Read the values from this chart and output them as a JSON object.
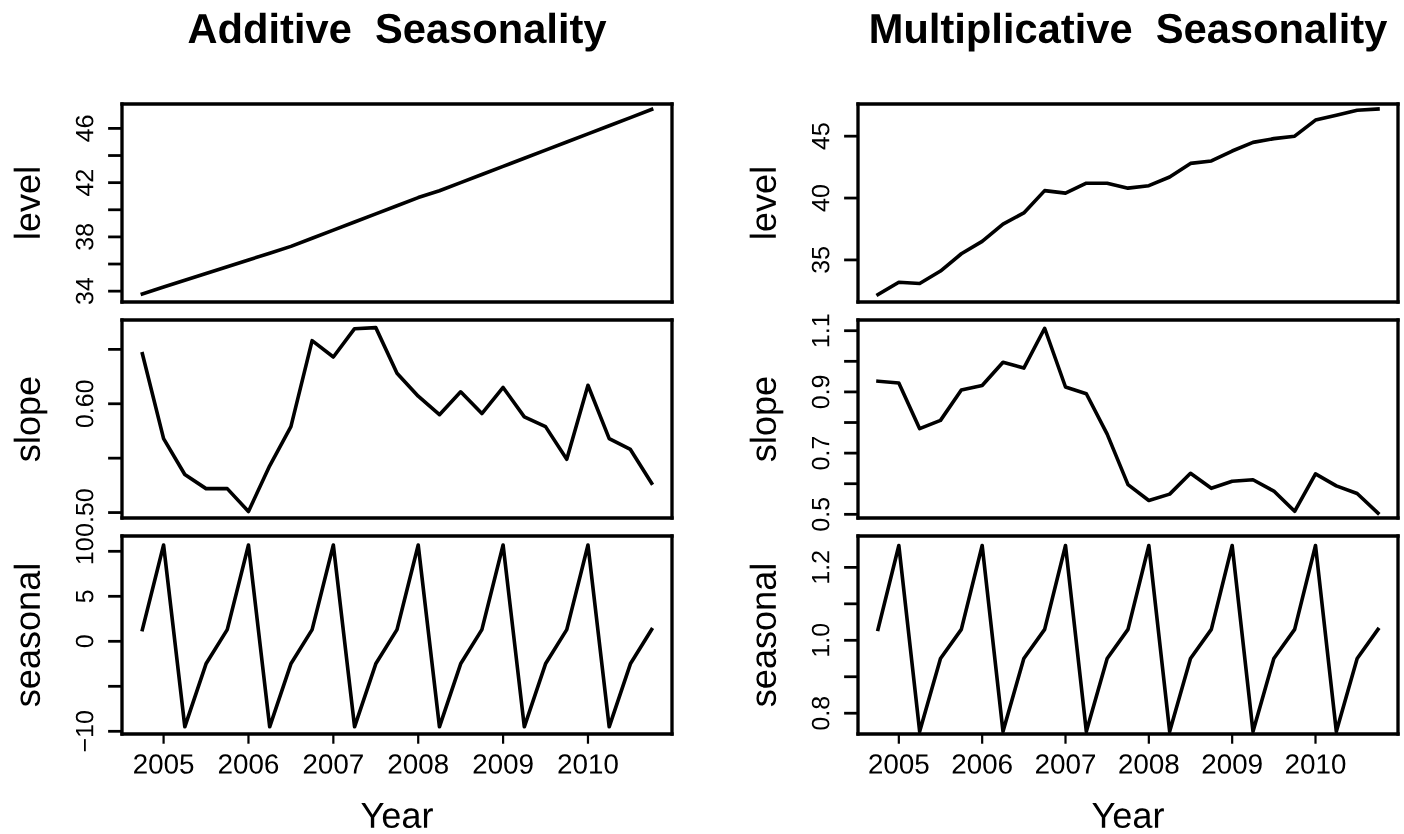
{
  "chart_data": [
    {
      "type": "line",
      "title": "Additive  Seasonality",
      "ylabel": "level",
      "x": [
        2004.75,
        2005,
        2005.25,
        2005.5,
        2005.75,
        2006,
        2006.25,
        2006.5,
        2006.75,
        2007,
        2007.25,
        2007.5,
        2007.75,
        2008,
        2008.25,
        2008.5,
        2008.75,
        2009,
        2009.25,
        2009.5,
        2009.75,
        2010,
        2010.25,
        2010.5,
        2010.75
      ],
      "series": [
        {
          "color": "#000000",
          "values": [
            33.8,
            34.3,
            34.8,
            35.3,
            35.8,
            36.3,
            36.8,
            37.3,
            37.9,
            38.5,
            39.1,
            39.7,
            40.3,
            40.9,
            41.4,
            42.0,
            42.6,
            43.2,
            43.8,
            44.4,
            45.0,
            45.6,
            46.2,
            46.8,
            47.4
          ]
        }
      ],
      "xlim": [
        2004.51,
        2010.99
      ],
      "xticks": [
        2005,
        2006,
        2007,
        2008,
        2009,
        2010
      ],
      "ylim": [
        33.2,
        47.8
      ],
      "yticks": [
        34,
        {
          "value": 36,
          "label": null
        },
        38,
        {
          "value": 40,
          "label": null
        },
        42,
        {
          "value": 44,
          "label": null
        },
        46
      ],
      "tick_labels": "y",
      "grid": false,
      "legend": false
    },
    {
      "type": "line",
      "ylabel": "slope",
      "x": [
        2004.75,
        2005,
        2005.25,
        2005.5,
        2005.75,
        2006,
        2006.25,
        2006.5,
        2006.75,
        2007,
        2007.25,
        2007.5,
        2007.75,
        2008,
        2008.25,
        2008.5,
        2008.75,
        2009,
        2009.25,
        2009.5,
        2009.75,
        2010,
        2010.25,
        2010.5,
        2010.75
      ],
      "series": [
        {
          "color": "#000000",
          "values": [
            0.646,
            0.568,
            0.535,
            0.522,
            0.522,
            0.501,
            0.543,
            0.579,
            0.658,
            0.643,
            0.669,
            0.67,
            0.628,
            0.607,
            0.59,
            0.611,
            0.591,
            0.615,
            0.588,
            0.579,
            0.549,
            0.617,
            0.568,
            0.558,
            0.527
          ]
        }
      ],
      "xlim": [
        2004.51,
        2010.99
      ],
      "xticks": [
        2005,
        2006,
        2007,
        2008,
        2009,
        2010
      ],
      "ylim": [
        0.495,
        0.677
      ],
      "yticks": [
        {
          "value": 0.5,
          "label": "0.50"
        },
        {
          "value": 0.55,
          "label": null
        },
        {
          "value": 0.6,
          "label": "0.60"
        },
        {
          "value": 0.65,
          "label": null
        }
      ],
      "tick_labels": "y",
      "grid": false,
      "legend": false
    },
    {
      "type": "line",
      "ylabel": "seasonal",
      "xlabel": "Year",
      "x": [
        2004.75,
        2005,
        2005.25,
        2005.5,
        2005.75,
        2006,
        2006.25,
        2006.5,
        2006.75,
        2007,
        2007.25,
        2007.5,
        2007.75,
        2008,
        2008.25,
        2008.5,
        2008.75,
        2009,
        2009.25,
        2009.5,
        2009.75,
        2010,
        2010.25,
        2010.5,
        2010.75
      ],
      "series": [
        {
          "color": "#000000",
          "values": [
            1.3,
            10.7,
            -9.5,
            -2.5,
            1.3,
            10.7,
            -9.5,
            -2.5,
            1.3,
            10.7,
            -9.5,
            -2.5,
            1.3,
            10.7,
            -9.5,
            -2.5,
            1.3,
            10.7,
            -9.5,
            -2.5,
            1.3,
            10.7,
            -9.5,
            -2.5,
            1.3
          ]
        }
      ],
      "xlim": [
        2004.51,
        2010.99
      ],
      "xticks": [
        2005,
        2006,
        2007,
        2008,
        2009,
        2010
      ],
      "ylim": [
        -10.3,
        11.7
      ],
      "yticks": [
        {
          "value": -10,
          "label": "−10"
        },
        {
          "value": -5,
          "label": null
        },
        0,
        5,
        10
      ],
      "grid": false,
      "legend": false
    },
    {
      "type": "line",
      "title": "Multiplicative  Seasonality",
      "ylabel": "level",
      "x": [
        2004.75,
        2005,
        2005.25,
        2005.5,
        2005.75,
        2006,
        2006.25,
        2006.5,
        2006.75,
        2007,
        2007.25,
        2007.5,
        2007.75,
        2008,
        2008.25,
        2008.5,
        2008.75,
        2009,
        2009.25,
        2009.5,
        2009.75,
        2010,
        2010.25,
        2010.5,
        2010.75
      ],
      "series": [
        {
          "color": "#000000",
          "values": [
            32.2,
            33.2,
            33.1,
            34.1,
            35.5,
            36.5,
            37.9,
            38.8,
            40.6,
            40.4,
            41.2,
            41.2,
            40.8,
            41.0,
            41.7,
            42.8,
            43.0,
            43.8,
            44.5,
            44.8,
            45.0,
            46.3,
            46.7,
            47.1,
            47.2
          ]
        }
      ],
      "xlim": [
        2004.51,
        2010.99
      ],
      "xticks": [
        2005,
        2006,
        2007,
        2008,
        2009,
        2010
      ],
      "ylim": [
        31.6,
        47.6
      ],
      "yticks": [
        35,
        40,
        45
      ],
      "tick_labels": "y",
      "grid": false,
      "legend": false
    },
    {
      "type": "line",
      "ylabel": "slope",
      "x": [
        2004.75,
        2005,
        2005.25,
        2005.5,
        2005.75,
        2006,
        2006.25,
        2006.5,
        2006.75,
        2007,
        2007.25,
        2007.5,
        2007.75,
        2008,
        2008.25,
        2008.5,
        2008.75,
        2009,
        2009.25,
        2009.5,
        2009.75,
        2010,
        2010.25,
        2010.5,
        2010.75
      ],
      "series": [
        {
          "color": "#000000",
          "values": [
            0.935,
            0.929,
            0.78,
            0.807,
            0.906,
            0.921,
            0.997,
            0.978,
            1.108,
            0.916,
            0.894,
            0.762,
            0.597,
            0.545,
            0.566,
            0.634,
            0.585,
            0.608,
            0.613,
            0.576,
            0.51,
            0.632,
            0.593,
            0.568,
            0.504
          ]
        }
      ],
      "xlim": [
        2004.51,
        2010.99
      ],
      "xticks": [
        2005,
        2006,
        2007,
        2008,
        2009,
        2010
      ],
      "ylim": [
        0.488,
        1.135
      ],
      "yticks": [
        0.5,
        {
          "value": 0.6,
          "label": null
        },
        0.7,
        {
          "value": 0.8,
          "label": null
        },
        0.9,
        {
          "value": 1.0,
          "label": null
        },
        1.1
      ],
      "tick_labels": "y",
      "grid": false,
      "legend": false
    },
    {
      "type": "line",
      "ylabel": "seasonal",
      "xlabel": "Year",
      "x": [
        2004.75,
        2005,
        2005.25,
        2005.5,
        2005.75,
        2006,
        2006.25,
        2006.5,
        2006.75,
        2007,
        2007.25,
        2007.5,
        2007.75,
        2008,
        2008.25,
        2008.5,
        2008.75,
        2009,
        2009.25,
        2009.5,
        2009.75,
        2010,
        2010.25,
        2010.5,
        2010.75
      ],
      "series": [
        {
          "color": "#000000",
          "values": [
            1.03,
            1.26,
            0.75,
            0.95,
            1.03,
            1.26,
            0.75,
            0.95,
            1.03,
            1.26,
            0.75,
            0.95,
            1.03,
            1.26,
            0.75,
            0.95,
            1.03,
            1.26,
            0.75,
            0.95,
            1.03,
            1.26,
            0.75,
            0.95,
            1.03
          ]
        }
      ],
      "xlim": [
        2004.51,
        2010.99
      ],
      "xticks": [
        2005,
        2006,
        2007,
        2008,
        2009,
        2010
      ],
      "ylim": [
        0.743,
        1.286
      ],
      "yticks": [
        0.8,
        {
          "value": 0.9,
          "label": null
        },
        {
          "value": 1.0,
          "label": "1.0"
        },
        {
          "value": 1.1,
          "label": null
        },
        1.2
      ],
      "grid": false,
      "legend": false
    }
  ]
}
